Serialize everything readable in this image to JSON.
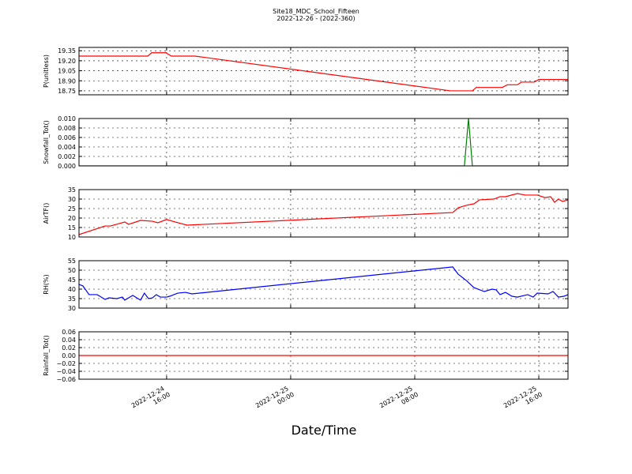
{
  "title": "Site18_MDC_School_Fifteen",
  "subtitle": "2022-12-26 - (2022-360)",
  "xlabel": "Date/Time",
  "chart_data": [
    {
      "type": "line",
      "ylabel": "P(unitless)",
      "color": "#ff0000",
      "grid": true,
      "x": [
        "2022-12-24 10:21",
        "2022-12-24 14:47",
        "2022-12-24 15:02",
        "2022-12-24 15:57",
        "2022-12-24 16:18",
        "2022-12-24 17:50",
        "2022-12-25 10:17",
        "2022-12-25 11:43",
        "2022-12-25 11:58",
        "2022-12-25 13:39",
        "2022-12-25 13:58",
        "2022-12-25 14:37",
        "2022-12-25 14:53",
        "2022-12-25 15:42",
        "2022-12-25 16:00",
        "2022-12-25 17:53"
      ],
      "values": [
        19.27,
        19.27,
        19.32,
        19.32,
        19.27,
        19.27,
        18.75,
        18.75,
        18.8,
        18.8,
        18.84,
        18.84,
        18.88,
        18.88,
        18.92,
        18.92
      ],
      "xlim": [
        "2022-12-24 10:21",
        "2022-12-25 17:53"
      ],
      "xticks": [
        "2022-12-24 16:00",
        "2022-12-25 00:00",
        "2022-12-25 08:00",
        "2022-12-25 16:00"
      ],
      "ylim": [
        18.69,
        19.4
      ],
      "yticks": [
        18.75,
        {
          "value": 18.9,
          "label": "18.90"
        },
        19.05,
        {
          "value": 19.2,
          "label": "19.20"
        },
        19.35
      ]
    },
    {
      "type": "line",
      "ylabel": "Snowfall_Tot()",
      "color": "#008000",
      "grid": true,
      "x": [
        "2022-12-24 10:21",
        "2022-12-25 11:12",
        "2022-12-25 11:28",
        "2022-12-25 11:43",
        "2022-12-25 17:53"
      ],
      "values": [
        0,
        0,
        0.01,
        0,
        0
      ],
      "xlim": [
        "2022-12-24 10:21",
        "2022-12-25 17:53"
      ],
      "xticks": [
        "2022-12-24 16:00",
        "2022-12-25 00:00",
        "2022-12-25 08:00",
        "2022-12-25 16:00"
      ],
      "ylim": [
        0,
        0.01
      ],
      "yticks": [
        {
          "value": 0,
          "label": "0.000"
        },
        {
          "value": 0.002,
          "label": "0.002"
        },
        {
          "value": 0.004,
          "label": "0.004"
        },
        {
          "value": 0.006,
          "label": "0.006"
        },
        {
          "value": 0.008,
          "label": "0.008"
        },
        {
          "value": 0.01,
          "label": "0.010"
        }
      ]
    },
    {
      "type": "line",
      "ylabel": "AirTF()",
      "color": "#ff0000",
      "grid": true,
      "x": [
        "2022-12-24 10:21",
        "2022-12-24 12:02",
        "2022-12-24 12:23",
        "2022-12-24 13:18",
        "2022-12-24 13:33",
        "2022-12-24 14:19",
        "2022-12-24 15:05",
        "2022-12-24 15:26",
        "2022-12-24 16:00",
        "2022-12-24 16:34",
        "2022-12-24 17:19",
        "2022-12-25 10:27",
        "2022-12-25 10:48",
        "2022-12-25 11:19",
        "2022-12-25 11:49",
        "2022-12-25 12:11",
        "2022-12-25 13:06",
        "2022-12-25 13:30",
        "2022-12-25 13:51",
        "2022-12-25 14:37",
        "2022-12-25 15:08",
        "2022-12-25 15:54",
        "2022-12-25 16:24",
        "2022-12-25 16:46",
        "2022-12-25 17:01",
        "2022-12-25 17:16",
        "2022-12-25 17:32",
        "2022-12-25 17:53"
      ],
      "values": [
        11.3,
        15.8,
        15.8,
        17.9,
        16.7,
        18.75,
        18.3,
        17.5,
        19.2,
        17.9,
        16.25,
        22.9,
        25.4,
        26.7,
        27.5,
        29.6,
        30,
        31.25,
        31.25,
        32.9,
        32.1,
        32.1,
        30.8,
        31.25,
        28.3,
        30,
        28.75,
        29.6
      ],
      "xlim": [
        "2022-12-24 10:21",
        "2022-12-25 17:53"
      ],
      "xticks": [
        "2022-12-24 16:00",
        "2022-12-25 00:00",
        "2022-12-25 08:00",
        "2022-12-25 16:00"
      ],
      "ylim": [
        10,
        35
      ],
      "yticks": [
        10,
        15,
        20,
        25,
        30,
        35
      ]
    },
    {
      "type": "line",
      "ylabel": "RH(%)",
      "color": "#0000ff",
      "grid": true,
      "x": [
        "2022-12-24 10:21",
        "2022-12-24 10:36",
        "2022-12-24 11:00",
        "2022-12-24 11:31",
        "2022-12-24 12:02",
        "2022-12-24 12:17",
        "2022-12-24 12:47",
        "2022-12-24 13:09",
        "2022-12-24 13:18",
        "2022-12-24 13:49",
        "2022-12-24 14:19",
        "2022-12-24 14:34",
        "2022-12-24 14:50",
        "2022-12-24 15:05",
        "2022-12-24 15:20",
        "2022-12-24 15:36",
        "2022-12-24 16:00",
        "2022-12-24 16:12",
        "2022-12-24 16:43",
        "2022-12-24 17:13",
        "2022-12-24 17:38",
        "2022-12-25 10:27",
        "2022-12-25 10:48",
        "2022-12-25 11:19",
        "2022-12-25 11:49",
        "2022-12-25 12:29",
        "2022-12-25 12:59",
        "2022-12-25 13:15",
        "2022-12-25 13:30",
        "2022-12-25 13:51",
        "2022-12-25 14:16",
        "2022-12-25 14:37",
        "2022-12-25 15:17",
        "2022-12-25 15:38",
        "2022-12-25 15:54",
        "2022-12-25 16:36",
        "2022-12-25 16:55",
        "2022-12-25 17:16",
        "2022-12-25 17:37",
        "2022-12-25 17:53"
      ],
      "values": [
        42.5,
        41.7,
        37.1,
        37.1,
        34.6,
        35.4,
        35,
        35.8,
        34.2,
        36.7,
        34.2,
        37.9,
        35,
        35.4,
        37.1,
        35.8,
        35.8,
        36.25,
        37.9,
        38.3,
        37.5,
        51.7,
        47.9,
        44.6,
        40.8,
        38.75,
        40,
        39.6,
        37.1,
        38.3,
        36.25,
        35.8,
        37.1,
        35.8,
        37.9,
        37.5,
        38.75,
        35.8,
        36.25,
        37.1
      ],
      "xlim": [
        "2022-12-24 10:21",
        "2022-12-25 17:53"
      ],
      "xticks": [
        "2022-12-24 16:00",
        "2022-12-25 00:00",
        "2022-12-25 08:00",
        "2022-12-25 16:00"
      ],
      "ylim": [
        30,
        55
      ],
      "yticks": [
        30,
        35,
        40,
        45,
        50,
        55
      ]
    },
    {
      "type": "line",
      "ylabel": "Rainfall_Tot()",
      "color": "#ff0000",
      "grid": true,
      "x": [
        "2022-12-24 10:21",
        "2022-12-25 17:53"
      ],
      "values": [
        0,
        0
      ],
      "xlim": [
        "2022-12-24 10:21",
        "2022-12-25 17:53"
      ],
      "xticks": [
        "2022-12-24 16:00",
        "2022-12-25 00:00",
        "2022-12-25 08:00",
        "2022-12-25 16:00"
      ],
      "ylim": [
        -0.06,
        0.06
      ],
      "yticks": [
        {
          "value": -0.06,
          "label": "−0.06"
        },
        {
          "value": -0.04,
          "label": "−0.04"
        },
        {
          "value": -0.02,
          "label": "−0.02"
        },
        {
          "value": 0,
          "label": "0.00"
        },
        {
          "value": 0.02,
          "label": "0.02"
        },
        {
          "value": 0.04,
          "label": "0.04"
        },
        {
          "value": 0.06,
          "label": "0.06"
        }
      ]
    }
  ]
}
